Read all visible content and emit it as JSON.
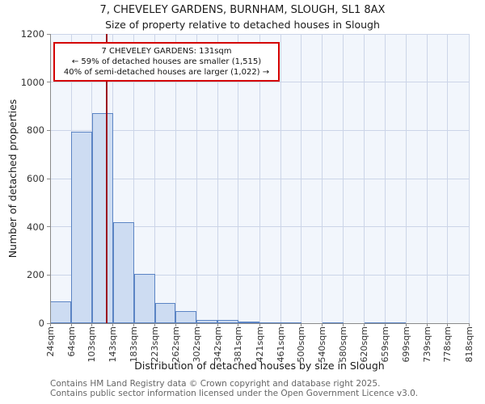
{
  "chart_data": {
    "type": "bar",
    "title": "7, CHEVELEY GARDENS, BURNHAM, SLOUGH, SL1 8AX",
    "subtitle": "Size of property relative to detached houses in Slough",
    "xlabel": "Distribution of detached houses by size in Slough",
    "ylabel": "Number of detached properties",
    "ylim": [
      0,
      1200
    ],
    "y_ticks": [
      0,
      200,
      400,
      600,
      800,
      1000,
      1200
    ],
    "bin_edges": [
      24,
      64,
      103,
      143,
      183,
      223,
      262,
      302,
      342,
      381,
      421,
      461,
      500,
      540,
      580,
      620,
      659,
      699,
      739,
      778,
      818
    ],
    "x_tick_labels": [
      "24sqm",
      "64sqm",
      "103sqm",
      "143sqm",
      "183sqm",
      "223sqm",
      "262sqm",
      "302sqm",
      "342sqm",
      "381sqm",
      "421sqm",
      "461sqm",
      "500sqm",
      "540sqm",
      "580sqm",
      "620sqm",
      "659sqm",
      "699sqm",
      "739sqm",
      "778sqm",
      "818sqm"
    ],
    "values": [
      90,
      795,
      870,
      420,
      205,
      85,
      50,
      15,
      15,
      8,
      5,
      5,
      0,
      5,
      0,
      5,
      5,
      0,
      0,
      0
    ],
    "marker_value": 131,
    "marker_label": "131sqm",
    "grid": true,
    "legend": "none",
    "colors": {
      "bar_fill": "#cddcf2",
      "bar_border": "#5b84c4",
      "marker_line": "#9b1020",
      "annotation_border": "#d40000",
      "grid_line": "#ccd5e8",
      "plot_bg": "#f2f6fc"
    }
  },
  "annotation": {
    "line1": "7 CHEVELEY GARDENS: 131sqm",
    "line2": "← 59% of detached houses are smaller (1,515)",
    "line3": "40% of semi-detached houses are larger (1,022) →"
  },
  "footer": {
    "line1": "Contains HM Land Registry data © Crown copyright and database right 2025.",
    "line2": "Contains public sector information licensed under the Open Government Licence v3.0."
  }
}
